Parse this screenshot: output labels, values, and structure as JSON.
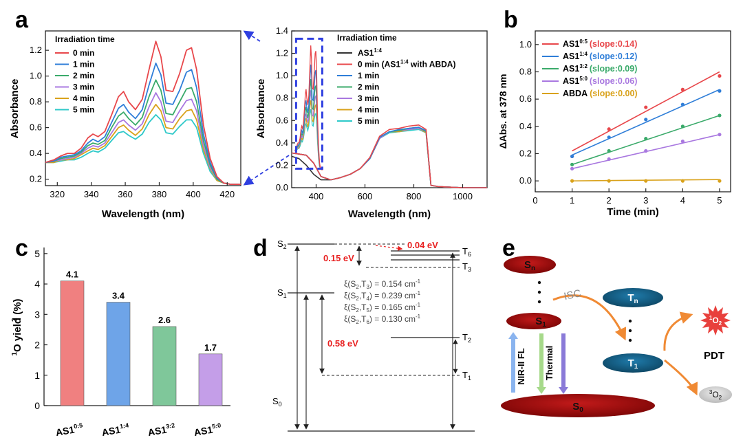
{
  "panel_labels": {
    "a": "a",
    "b": "b",
    "c": "c",
    "d": "d",
    "e": "e"
  },
  "colors": {
    "red": "#e8474b",
    "blue": "#2f7ed8",
    "green": "#3aaa6a",
    "purple": "#a978e0",
    "orange": "#d9a21b",
    "cyan": "#2ec9c9",
    "black": "#333333",
    "dashblue": "#2f3fe0",
    "bar_red": "#f08080",
    "bar_blue": "#6ea4e8",
    "bar_green": "#7fc79a",
    "bar_purple": "#c49ee8",
    "dark_red": "#9e0b0b",
    "dark_blue": "#155a80"
  },
  "chart_data": [
    {
      "id": "a1",
      "type": "line",
      "title": "",
      "xlabel": "Wavelength (nm)",
      "ylabel": "Absorbance",
      "xlim": [
        313,
        428
      ],
      "ylim": [
        0.15,
        1.35
      ],
      "xticks": [
        320,
        340,
        360,
        380,
        400,
        420
      ],
      "yticks": [
        0.2,
        0.4,
        0.6,
        0.8,
        1.0,
        1.2
      ],
      "ytick_labels": [
        "0.2",
        "0.4",
        "0.6",
        "0.8",
        "1.0",
        "1.2"
      ],
      "legend_title": "Irradiation time",
      "legend_position": "top-left",
      "grid": false,
      "x": [
        313,
        318,
        322,
        326,
        330,
        334,
        338,
        341,
        344,
        348,
        352,
        356,
        359,
        362,
        366,
        370,
        374,
        378,
        381,
        384,
        388,
        392,
        396,
        399,
        402,
        406,
        410,
        414,
        418,
        422,
        428
      ],
      "series": [
        {
          "name": "0 min",
          "color": "red",
          "values": [
            0.33,
            0.35,
            0.38,
            0.4,
            0.4,
            0.44,
            0.52,
            0.55,
            0.53,
            0.57,
            0.7,
            0.84,
            0.88,
            0.8,
            0.74,
            0.82,
            1.05,
            1.27,
            1.15,
            0.89,
            0.88,
            1.02,
            1.2,
            1.22,
            1.05,
            0.62,
            0.36,
            0.22,
            0.17,
            0.16,
            0.16
          ]
        },
        {
          "name": "1 min",
          "color": "blue",
          "values": [
            0.33,
            0.34,
            0.37,
            0.38,
            0.39,
            0.42,
            0.48,
            0.51,
            0.49,
            0.53,
            0.64,
            0.75,
            0.78,
            0.72,
            0.67,
            0.74,
            0.93,
            1.1,
            1.01,
            0.79,
            0.78,
            0.89,
            1.03,
            1.05,
            0.91,
            0.55,
            0.33,
            0.21,
            0.17,
            0.16,
            0.16
          ]
        },
        {
          "name": "2 min",
          "color": "green",
          "values": [
            0.33,
            0.34,
            0.36,
            0.37,
            0.38,
            0.41,
            0.46,
            0.48,
            0.47,
            0.5,
            0.6,
            0.69,
            0.72,
            0.67,
            0.62,
            0.68,
            0.84,
            0.97,
            0.89,
            0.71,
            0.7,
            0.8,
            0.9,
            0.91,
            0.8,
            0.5,
            0.31,
            0.2,
            0.17,
            0.16,
            0.16
          ]
        },
        {
          "name": "3 min",
          "color": "purple",
          "values": [
            0.33,
            0.34,
            0.35,
            0.36,
            0.37,
            0.4,
            0.44,
            0.46,
            0.45,
            0.48,
            0.56,
            0.64,
            0.66,
            0.62,
            0.58,
            0.63,
            0.76,
            0.87,
            0.8,
            0.65,
            0.64,
            0.73,
            0.81,
            0.82,
            0.73,
            0.46,
            0.29,
            0.2,
            0.17,
            0.16,
            0.16
          ]
        },
        {
          "name": "4 min",
          "color": "orange",
          "values": [
            0.33,
            0.33,
            0.35,
            0.35,
            0.36,
            0.39,
            0.42,
            0.44,
            0.43,
            0.46,
            0.53,
            0.6,
            0.62,
            0.58,
            0.54,
            0.59,
            0.7,
            0.78,
            0.73,
            0.6,
            0.59,
            0.67,
            0.73,
            0.74,
            0.66,
            0.43,
            0.28,
            0.19,
            0.17,
            0.16,
            0.16
          ]
        },
        {
          "name": "5 min",
          "color": "cyan",
          "values": [
            0.33,
            0.33,
            0.34,
            0.35,
            0.35,
            0.37,
            0.4,
            0.42,
            0.41,
            0.44,
            0.5,
            0.56,
            0.57,
            0.54,
            0.51,
            0.55,
            0.64,
            0.7,
            0.66,
            0.56,
            0.55,
            0.61,
            0.66,
            0.66,
            0.6,
            0.4,
            0.26,
            0.19,
            0.17,
            0.16,
            0.16
          ]
        }
      ]
    },
    {
      "id": "a2",
      "type": "line",
      "title": "",
      "xlabel": "Wavelength (nm)",
      "ylabel": "Absorbance",
      "xlim": [
        300,
        1100
      ],
      "ylim": [
        0,
        1.4
      ],
      "xticks": [
        400,
        600,
        800,
        1000
      ],
      "yticks": [
        0.0,
        0.2,
        0.4,
        0.6,
        0.8,
        1.0,
        1.2,
        1.4
      ],
      "ytick_labels": [
        "0.0",
        "0.2",
        "0.4",
        "0.6",
        "0.8",
        "1.0",
        "1.2",
        "1.4"
      ],
      "legend_title": "Irradiation time",
      "legend_position": "top-right",
      "grid": false,
      "inset_box_x": [
        318,
        425
      ],
      "inset_box_y": [
        0.17,
        1.33
      ],
      "x_back": [
        300,
        330,
        360,
        390,
        420,
        460,
        500,
        540,
        580,
        620,
        660,
        700,
        740,
        780,
        820,
        850,
        870,
        900,
        1000,
        1100
      ],
      "back_series": [
        {
          "name": "AS1",
          "sup": "1:4",
          "color": "black",
          "values": [
            0.28,
            0.26,
            0.2,
            0.12,
            0.07,
            0.07,
            0.09,
            0.12,
            0.17,
            0.26,
            0.44,
            0.5,
            0.51,
            0.52,
            0.53,
            0.5,
            0.02,
            0.01,
            0.0,
            0.0
          ]
        },
        {
          "name": "5 min",
          "color": "cyan",
          "values": [
            0.31,
            0.3,
            0.29,
            0.22,
            0.1,
            0.07,
            0.09,
            0.12,
            0.17,
            0.26,
            0.44,
            0.49,
            0.5,
            0.51,
            0.52,
            0.49,
            0.02,
            0.01,
            0.0,
            0.0
          ]
        },
        {
          "name": "4 min",
          "color": "orange",
          "values": [
            0.31,
            0.3,
            0.29,
            0.22,
            0.1,
            0.07,
            0.09,
            0.12,
            0.17,
            0.26,
            0.44,
            0.5,
            0.5,
            0.52,
            0.53,
            0.49,
            0.02,
            0.01,
            0.0,
            0.0
          ]
        },
        {
          "name": "3 min",
          "color": "purple",
          "values": [
            0.31,
            0.3,
            0.29,
            0.22,
            0.1,
            0.07,
            0.09,
            0.12,
            0.17,
            0.26,
            0.44,
            0.5,
            0.51,
            0.52,
            0.53,
            0.5,
            0.02,
            0.01,
            0.0,
            0.0
          ]
        },
        {
          "name": "2 min",
          "color": "green",
          "values": [
            0.31,
            0.3,
            0.29,
            0.22,
            0.1,
            0.07,
            0.09,
            0.12,
            0.17,
            0.26,
            0.45,
            0.5,
            0.51,
            0.53,
            0.54,
            0.5,
            0.02,
            0.01,
            0.0,
            0.0
          ]
        },
        {
          "name": "1 min",
          "color": "blue",
          "values": [
            0.31,
            0.3,
            0.29,
            0.22,
            0.1,
            0.07,
            0.09,
            0.12,
            0.17,
            0.26,
            0.45,
            0.5,
            0.52,
            0.53,
            0.54,
            0.51,
            0.02,
            0.01,
            0.0,
            0.0
          ]
        },
        {
          "name": "0 min (AS1 with ABDA)",
          "sup": "1:4",
          "color": "red",
          "values": [
            0.31,
            0.3,
            0.29,
            0.22,
            0.1,
            0.07,
            0.09,
            0.12,
            0.17,
            0.27,
            0.46,
            0.52,
            0.53,
            0.55,
            0.56,
            0.52,
            0.02,
            0.01,
            0.0,
            0.0
          ]
        }
      ],
      "spike_scale": [
        1.0,
        0.88,
        0.78,
        0.7,
        0.63,
        0.56
      ]
    },
    {
      "id": "b",
      "type": "scatter",
      "title": "",
      "xlabel": "Time (min)",
      "ylabel": "ΔAbs. at 378 nm",
      "xlim": [
        0,
        5.3
      ],
      "ylim": [
        -0.08,
        1.1
      ],
      "xticks": [
        0,
        1,
        2,
        3,
        4,
        5
      ],
      "yticks": [
        0.0,
        0.2,
        0.4,
        0.6,
        0.8,
        1.0
      ],
      "ytick_labels": [
        "0.0",
        "0.2",
        "0.4",
        "0.6",
        "0.8",
        "1.0"
      ],
      "legend_position": "top-left",
      "grid": false,
      "x": [
        1,
        2,
        3,
        4,
        5
      ],
      "series": [
        {
          "name": "AS1",
          "sup": "0:5",
          "slope_label": "(slope:0.14)",
          "color": "red",
          "values": [
            0.18,
            0.38,
            0.54,
            0.67,
            0.77
          ],
          "fit": [
            0.22,
            0.8
          ]
        },
        {
          "name": "AS1",
          "sup": "1:4",
          "slope_label": "(slope:0.12)",
          "color": "blue",
          "values": [
            0.18,
            0.32,
            0.45,
            0.56,
            0.66
          ],
          "fit": [
            0.19,
            0.67
          ]
        },
        {
          "name": "AS1",
          "sup": "3:2",
          "slope_label": "(slope:0.09)",
          "color": "green",
          "values": [
            0.12,
            0.22,
            0.31,
            0.4,
            0.48
          ],
          "fit": [
            0.12,
            0.48
          ]
        },
        {
          "name": "AS1",
          "sup": "5:0",
          "slope_label": "(slope:0.06)",
          "color": "purple",
          "values": [
            0.09,
            0.16,
            0.22,
            0.29,
            0.34
          ],
          "fit": [
            0.09,
            0.34
          ]
        },
        {
          "name": "ABDA",
          "slope_label": "(slope:0.00)",
          "color": "orange",
          "values": [
            0.0,
            0.0,
            0.0,
            0.0,
            0.0
          ],
          "fit": [
            0.0,
            0.01
          ]
        }
      ]
    },
    {
      "id": "c",
      "type": "bar",
      "title": "",
      "ylabel": "O yield (%)",
      "ylabel_sup": "1",
      "ylabel_sub": "2",
      "ylim": [
        0,
        5.2
      ],
      "yticks": [
        0,
        1,
        2,
        3,
        4,
        5
      ],
      "categories": [
        "AS1",
        "AS1",
        "AS1",
        "AS1"
      ],
      "category_sups": [
        "0:5",
        "1:4",
        "3:2",
        "5:0"
      ],
      "values": [
        4.1,
        3.4,
        2.6,
        1.7
      ],
      "value_labels": [
        "4.1",
        "3.4",
        "2.6",
        "1.7"
      ],
      "colors": [
        "bar_red",
        "bar_blue",
        "bar_green",
        "bar_purple"
      ],
      "grid": false
    }
  ],
  "panel_d": {
    "s2": "S",
    "s2_sub": "2",
    "s1": "S",
    "s1_sub": "1",
    "s0": "S",
    "s0_sub": "0",
    "t6": "T",
    "t6_sub": "6",
    "t3": "T",
    "t3_sub": "3",
    "t2": "T",
    "t2_sub": "2",
    "t1": "T",
    "t1_sub": "1",
    "gap_s2_t6": "0.04 eV",
    "gap_s2_t3": "0.15 eV",
    "gap_s1_t1": "0.58 eV",
    "soc": [
      {
        "pre": "ξ(S",
        "a": "2",
        "mid": ",T",
        "b": "3",
        "post": ") = 0.154 cm",
        "exp": "-1"
      },
      {
        "pre": "ξ(S",
        "a": "2",
        "mid": ",T",
        "b": "4",
        "post": ") = 0.239 cm",
        "exp": "-1"
      },
      {
        "pre": "ξ(S",
        "a": "2",
        "mid": ",T",
        "b": "5",
        "post": ") = 0.165 cm",
        "exp": "-1"
      },
      {
        "pre": "ξ(S",
        "a": "2",
        "mid": ",T",
        "b": "6",
        "post": ") = 0.130 cm",
        "exp": "-1"
      }
    ]
  },
  "panel_e": {
    "sn": "S",
    "sn_sub": "n",
    "s1": "S",
    "s1_sub": "1",
    "s0": "S",
    "s0_sub": "0",
    "tn": "T",
    "tn_sub": "n",
    "t1": "T",
    "t1_sub": "1",
    "isc": "ISC",
    "nir": "NIR-II FL",
    "thermal": "Thermal",
    "pdt": "PDT",
    "singlet": "O",
    "singlet_sup": "1",
    "singlet_sub": "2",
    "triplet": "O",
    "triplet_sup": "3",
    "triplet_sub": "2"
  }
}
